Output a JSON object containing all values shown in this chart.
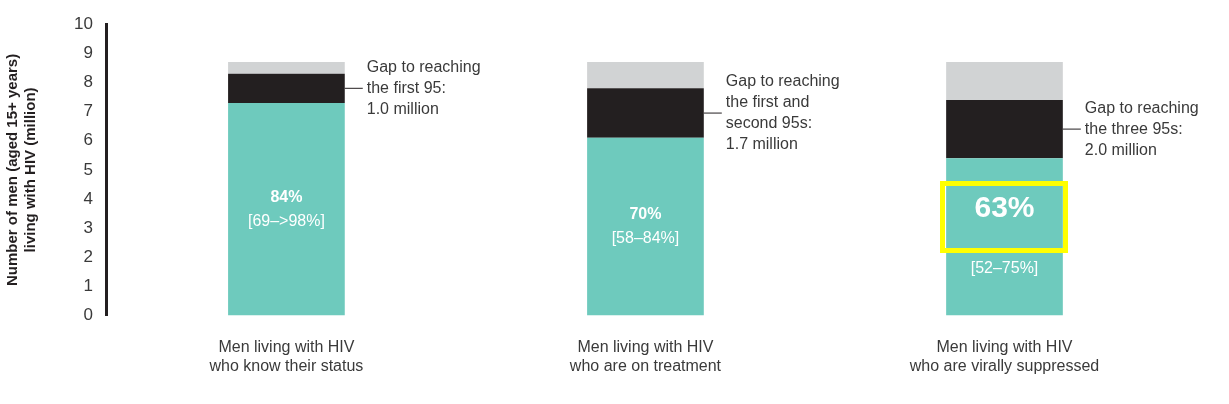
{
  "chart_data": {
    "type": "bar",
    "stacked": true,
    "ylabel": "Number of men (aged 15+ years)\nliving with HIV (million)",
    "categories": [
      "Men living with HIV\nwho know their status",
      "Men living with HIV\nwho are on treatment",
      "Men living with HIV\nwho are virally suppressed"
    ],
    "series": [
      {
        "color": "#6ecabd",
        "values": [
          7.3,
          6.1,
          5.4
        ]
      },
      {
        "color": "#231f20",
        "values": [
          1.0,
          1.7,
          2.0
        ]
      },
      {
        "color": "#d1d3d4",
        "values": [
          0.4,
          0.9,
          1.3
        ]
      }
    ],
    "ylim": [
      0,
      10
    ],
    "yticks": [
      0,
      1,
      2,
      3,
      4,
      5,
      6,
      7,
      8,
      9,
      10
    ],
    "grid": false,
    "legend": false,
    "annotations": [
      "84%\n[69–>98%]",
      "Gap to reaching\nthe first 95:\n1.0 million",
      "70%\n[58–84%]",
      "Gap to reaching\nthe first and\nsecond 95s:\n1.7 million",
      "63%\n[52–75%]",
      "Gap to reaching\nthe three 95s:\n2.0 million"
    ]
  }
}
